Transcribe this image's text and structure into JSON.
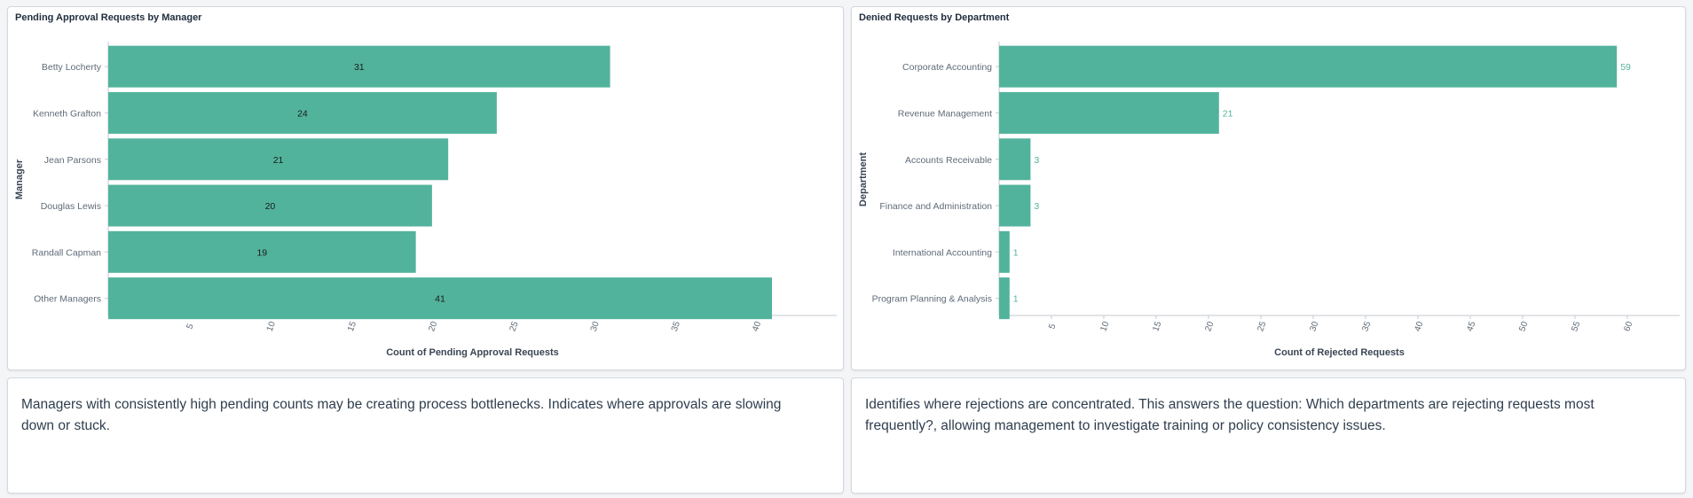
{
  "left_chart": {
    "title": "Pending Approval Requests by Manager",
    "note": "Managers with consistently high pending counts may be creating process bottlenecks. Indicates where approvals are slowing down or stuck."
  },
  "right_chart": {
    "title": "Denied Requests by Department",
    "note": "Identifies where rejections are concentrated. This answers the question: Which departments are rejecting requests most frequently?, allowing management to investigate training or policy consistency issues."
  },
  "colors": {
    "bar": "#52b39c",
    "inside_label": "#1a1a1a",
    "outside_label": "#52b39c",
    "axis": "#c5c9cf",
    "tick_text": "#5f6b78",
    "axis_title": "#3a4654"
  },
  "chart_data": [
    {
      "type": "bar",
      "orientation": "horizontal",
      "title": "Pending Approval Requests by Manager",
      "xlabel": "Count of Pending Approval Requests",
      "ylabel": "Manager",
      "categories": [
        "Betty Locherty",
        "Kenneth Grafton",
        "Jean Parsons",
        "Douglas Lewis",
        "Randall Capman",
        "Other Managers"
      ],
      "values": [
        31,
        24,
        21,
        20,
        19,
        41
      ],
      "xlim": [
        0,
        45
      ],
      "xticks": [
        5,
        10,
        15,
        20,
        25,
        30,
        35,
        40
      ],
      "data_labels": "inside",
      "grid": false
    },
    {
      "type": "bar",
      "orientation": "horizontal",
      "title": "Denied Requests by Department",
      "xlabel": "Count of Rejected Requests",
      "ylabel": "Department",
      "categories": [
        "Corporate Accounting",
        "Revenue Management",
        "Accounts Receivable",
        "Finance and Administration",
        "International Accounting",
        "Program Planning & Analysis"
      ],
      "values": [
        59,
        21,
        3,
        3,
        1,
        1
      ],
      "xlim": [
        0,
        65
      ],
      "xticks": [
        5,
        10,
        15,
        20,
        25,
        30,
        35,
        40,
        45,
        50,
        55,
        60
      ],
      "data_labels": "outside",
      "grid": false
    }
  ]
}
